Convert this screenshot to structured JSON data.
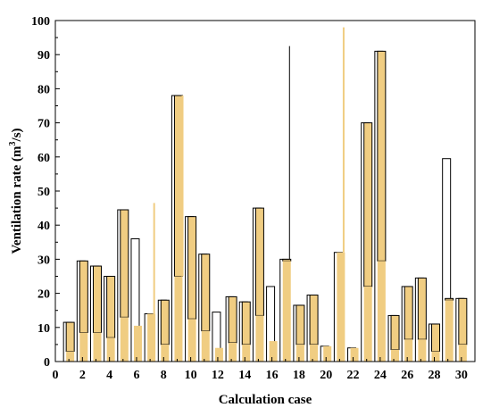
{
  "chart_data": {
    "type": "bar",
    "title": "",
    "xlabel": "Calculation case",
    "ylabel_main": "Ventilation rate (m",
    "ylabel_sup": "3",
    "ylabel_end": "/s)",
    "xlim": [
      0,
      31
    ],
    "ylim": [
      0,
      100
    ],
    "xticks": [
      0,
      2,
      4,
      6,
      8,
      10,
      12,
      14,
      16,
      18,
      20,
      22,
      24,
      26,
      28,
      30
    ],
    "yticks": [
      0,
      10,
      20,
      30,
      40,
      50,
      60,
      70,
      80,
      90,
      100
    ],
    "colors": {
      "fill": "#f0cd82",
      "edge": "#000000",
      "axis": "#000000"
    },
    "series": [
      {
        "style": "white",
        "values": [
          [
            1,
            3,
            11.5
          ],
          [
            2,
            8.5,
            29.5
          ],
          [
            3,
            8.5,
            28
          ],
          [
            4,
            7,
            25
          ],
          [
            5,
            13,
            44.5
          ],
          [
            6,
            10.5,
            36
          ],
          [
            7,
            14,
            14
          ],
          [
            8,
            5,
            18
          ],
          [
            9,
            25,
            78
          ],
          [
            10,
            12.5,
            42.5
          ],
          [
            11,
            9,
            31.5
          ],
          [
            12,
            4,
            14.5
          ],
          [
            13,
            5.5,
            19
          ],
          [
            14,
            5,
            17.5
          ],
          [
            15,
            13.5,
            45
          ],
          [
            16,
            6,
            22
          ],
          [
            17,
            29.5,
            30
          ],
          [
            18,
            5,
            16.5
          ],
          [
            19,
            5,
            19.5
          ],
          [
            20,
            4.5,
            4.5
          ],
          [
            21,
            32,
            32
          ],
          [
            22,
            4,
            4
          ],
          [
            23,
            22,
            70
          ],
          [
            24,
            29.5,
            91
          ],
          [
            25,
            3.5,
            13.5
          ],
          [
            26,
            6.5,
            22
          ],
          [
            27,
            6.5,
            24.5
          ],
          [
            28,
            3,
            11
          ],
          [
            29,
            18,
            59.5
          ],
          [
            30,
            5,
            18.5
          ]
        ]
      },
      {
        "style": "filled",
        "values": [
          [
            1,
            3,
            11.5
          ],
          [
            2,
            8.5,
            29.5
          ],
          [
            3,
            8.5,
            28
          ],
          [
            4,
            7,
            25
          ],
          [
            5,
            13,
            44.5
          ],
          [
            6,
            10.5,
            10.5
          ],
          [
            7,
            14,
            14
          ],
          [
            8,
            5,
            18
          ],
          [
            9,
            25,
            78
          ],
          [
            10,
            12.5,
            42.5
          ],
          [
            11,
            9,
            31.5
          ],
          [
            12,
            4,
            4
          ],
          [
            13,
            5.5,
            19
          ],
          [
            14,
            5,
            17.5
          ],
          [
            15,
            13.5,
            45
          ],
          [
            16,
            6,
            6
          ],
          [
            17,
            29.5,
            30
          ],
          [
            18,
            5,
            16.5
          ],
          [
            19,
            5,
            19.5
          ],
          [
            20,
            4.5,
            4.5
          ],
          [
            21,
            32,
            32
          ],
          [
            22,
            4,
            4
          ],
          [
            23,
            22,
            70
          ],
          [
            24,
            29.5,
            91
          ],
          [
            25,
            3.5,
            13.5
          ],
          [
            26,
            6.5,
            22
          ],
          [
            27,
            6.5,
            24.5
          ],
          [
            28,
            3,
            11
          ],
          [
            29,
            18,
            18.5
          ],
          [
            30,
            5,
            18.5
          ]
        ]
      }
    ],
    "whiskers": [
      {
        "x": 9.4,
        "ymin": 25,
        "ymax": 78,
        "style": "filled"
      },
      {
        "x": 7.3,
        "ymin": 14,
        "ymax": 46.5,
        "style": "filled"
      },
      {
        "x": 17.3,
        "ymin": 30,
        "ymax": 92.5,
        "style": "white"
      },
      {
        "x": 21.3,
        "ymin": 32,
        "ymax": 98,
        "style": "filled"
      }
    ]
  }
}
